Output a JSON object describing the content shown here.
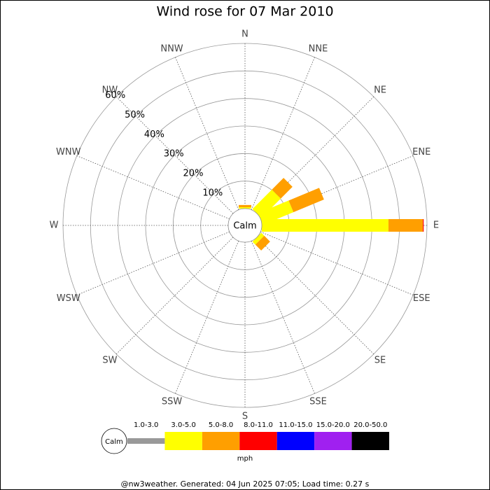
{
  "chart_data": {
    "type": "windrose",
    "title": "Wind rose for 07 Mar 2010",
    "directions": [
      "N",
      "NNE",
      "NE",
      "ENE",
      "E",
      "ESE",
      "SE",
      "SSE",
      "S",
      "SSW",
      "SW",
      "WSW",
      "W",
      "WNW",
      "NW",
      "NNW"
    ],
    "series": [
      {
        "name": "1.0-3.0",
        "color": "#999999",
        "values": [
          0,
          0,
          0,
          0,
          0,
          0,
          0,
          0,
          0,
          0,
          0,
          0,
          0,
          0,
          0,
          0
        ]
      },
      {
        "name": "3.0-5.0",
        "color": "#ffff00",
        "values": [
          0.5,
          0,
          10,
          12,
          46,
          0,
          1.5,
          0,
          0,
          0,
          0,
          0,
          0,
          0,
          0,
          0
        ]
      },
      {
        "name": "5.0-8.0",
        "color": "#ff9f00",
        "values": [
          0.8,
          0,
          6,
          12,
          12.5,
          0,
          3,
          0,
          0,
          0,
          0,
          0,
          0,
          0,
          0,
          0
        ]
      },
      {
        "name": "8.0-11.0",
        "color": "#ff0000",
        "values": [
          0,
          0,
          0,
          0,
          0.3,
          0,
          0,
          0,
          0,
          0,
          0,
          0,
          0,
          0,
          0,
          0
        ]
      },
      {
        "name": "11.0-15.0",
        "color": "#0000ff",
        "values": [
          0,
          0,
          0,
          0,
          0,
          0,
          0,
          0,
          0,
          0,
          0,
          0,
          0,
          0,
          0,
          0
        ]
      },
      {
        "name": "15.0-20.0",
        "color": "#a020f0",
        "values": [
          0,
          0,
          0,
          0,
          0,
          0,
          0,
          0,
          0,
          0,
          0,
          0,
          0,
          0,
          0,
          0
        ]
      },
      {
        "name": "20.0-50.0",
        "color": "#000000",
        "values": [
          0,
          0,
          0,
          0,
          0,
          0,
          0,
          0,
          0,
          0,
          0,
          0,
          0,
          0,
          0,
          0
        ]
      }
    ],
    "rlim": [
      0,
      60
    ],
    "rticks": [
      {
        "value": 10,
        "label": "10%"
      },
      {
        "value": 20,
        "label": "20%"
      },
      {
        "value": 30,
        "label": "30%"
      },
      {
        "value": 40,
        "label": "40%"
      },
      {
        "value": 50,
        "label": "50%"
      },
      {
        "value": 60,
        "label": "60%"
      }
    ],
    "center_label": "Calm",
    "legend_center_label": "Calm",
    "unit_label": "mph",
    "footer": "@nw3weather. Generated: 04 Jun 2025 07:05; Load time: 0.27 s"
  }
}
